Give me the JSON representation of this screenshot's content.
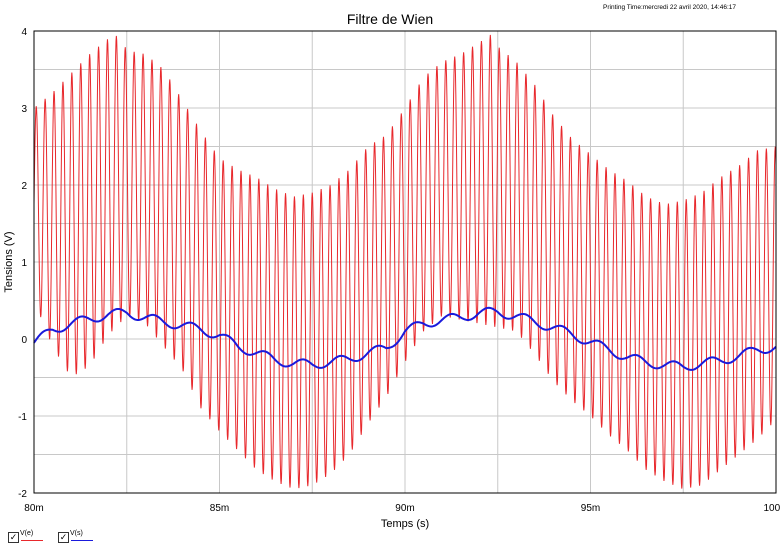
{
  "header": {
    "printing_time": "Printing Time:mercredi 22 avril 2020, 14:46:17"
  },
  "chart_data": {
    "type": "line",
    "title": "Filtre de Wien",
    "xlabel": "Temps (s)",
    "ylabel": "Tensions (V)",
    "xlim": [
      80,
      100
    ],
    "x_unit": "ms",
    "ylim": [
      -2,
      4
    ],
    "x_ticks": [
      80,
      85,
      90,
      95,
      100
    ],
    "x_tick_labels": [
      "80m",
      "85m",
      "90m",
      "95m",
      "100m"
    ],
    "x_minor_step": 2.5,
    "y_ticks": [
      -2,
      -1,
      0,
      1,
      2,
      3,
      4
    ],
    "y_tick_labels": [
      "-2",
      "-1",
      "0",
      "1",
      "2",
      "3",
      "4"
    ],
    "grid": true,
    "legend_position": "bottom-left",
    "series": [
      {
        "name": "V(e)",
        "color": "#e8282c",
        "kind": "fast-oscillation",
        "carrier_period_ms": 0.24,
        "upper_envelope": {
          "x": [
            80,
            80.5,
            81,
            81.5,
            82,
            82.3,
            82.5,
            83,
            83.5,
            84,
            84.5,
            85,
            85.5,
            86,
            86.5,
            87,
            87.5,
            88,
            88.5,
            89,
            89.5,
            90,
            90.5,
            91,
            91.5,
            92,
            92.3,
            92.5,
            93,
            93.5,
            94,
            94.5,
            95,
            95.5,
            96,
            96.5,
            97,
            97.5,
            98,
            98.5,
            99,
            99.5,
            100
          ],
          "y": [
            3.0,
            3.2,
            3.45,
            3.7,
            3.9,
            3.95,
            3.75,
            3.7,
            3.5,
            3.1,
            2.7,
            2.35,
            2.2,
            2.1,
            1.95,
            1.85,
            1.9,
            2.0,
            2.2,
            2.5,
            2.65,
            3.0,
            3.4,
            3.6,
            3.7,
            3.85,
            3.95,
            3.8,
            3.6,
            3.3,
            2.9,
            2.6,
            2.4,
            2.2,
            2.05,
            1.85,
            1.75,
            1.8,
            1.9,
            2.1,
            2.25,
            2.45,
            2.5
          ]
        },
        "lower_envelope": {
          "x": [
            80,
            80.5,
            81,
            81.5,
            82,
            82.5,
            83,
            83.5,
            84,
            84.5,
            85,
            85.5,
            86,
            86.5,
            87,
            87.5,
            88,
            88.5,
            89,
            89.5,
            90,
            90.5,
            91,
            91.5,
            92,
            92.5,
            93,
            93.5,
            94,
            94.5,
            95,
            95.5,
            96,
            96.5,
            97,
            97.5,
            98,
            98.5,
            99,
            99.5,
            100
          ],
          "y": [
            0.5,
            -0.1,
            -0.5,
            -0.35,
            0.05,
            0.3,
            0.2,
            -0.1,
            -0.4,
            -0.9,
            -1.2,
            -1.45,
            -1.7,
            -1.85,
            -1.95,
            -1.9,
            -1.75,
            -1.5,
            -1.1,
            -0.75,
            -0.3,
            0.1,
            0.3,
            0.25,
            0.2,
            0.15,
            0.1,
            -0.2,
            -0.55,
            -0.8,
            -1.0,
            -1.25,
            -1.45,
            -1.7,
            -1.85,
            -1.95,
            -1.9,
            -1.7,
            -1.5,
            -1.3,
            -1.05
          ]
        }
      },
      {
        "name": "V(s)",
        "color": "#1a1adc",
        "kind": "smooth",
        "ripple_period_ms": 1.0,
        "ripple_amplitude": 0.06,
        "baseline": {
          "x": [
            80,
            80.5,
            81,
            81.5,
            82,
            82.5,
            83,
            83.5,
            84,
            84.5,
            85,
            85.5,
            86,
            86.5,
            87,
            87.5,
            88,
            88.5,
            89,
            89.5,
            90,
            90.5,
            91,
            91.5,
            92,
            92.5,
            93,
            93.5,
            94,
            94.5,
            95,
            95.5,
            96,
            96.5,
            97,
            97.5,
            98,
            98.5,
            99,
            99.5,
            100
          ],
          "y": [
            -0.05,
            0.12,
            0.2,
            0.26,
            0.32,
            0.34,
            0.28,
            0.22,
            0.18,
            0.12,
            0.05,
            -0.1,
            -0.18,
            -0.27,
            -0.32,
            -0.33,
            -0.3,
            -0.26,
            -0.18,
            -0.12,
            0.1,
            0.2,
            0.25,
            0.28,
            0.34,
            0.35,
            0.3,
            0.22,
            0.15,
            0.06,
            -0.04,
            -0.14,
            -0.24,
            -0.3,
            -0.34,
            -0.36,
            -0.32,
            -0.28,
            -0.22,
            -0.14,
            -0.1
          ]
        }
      }
    ]
  }
}
